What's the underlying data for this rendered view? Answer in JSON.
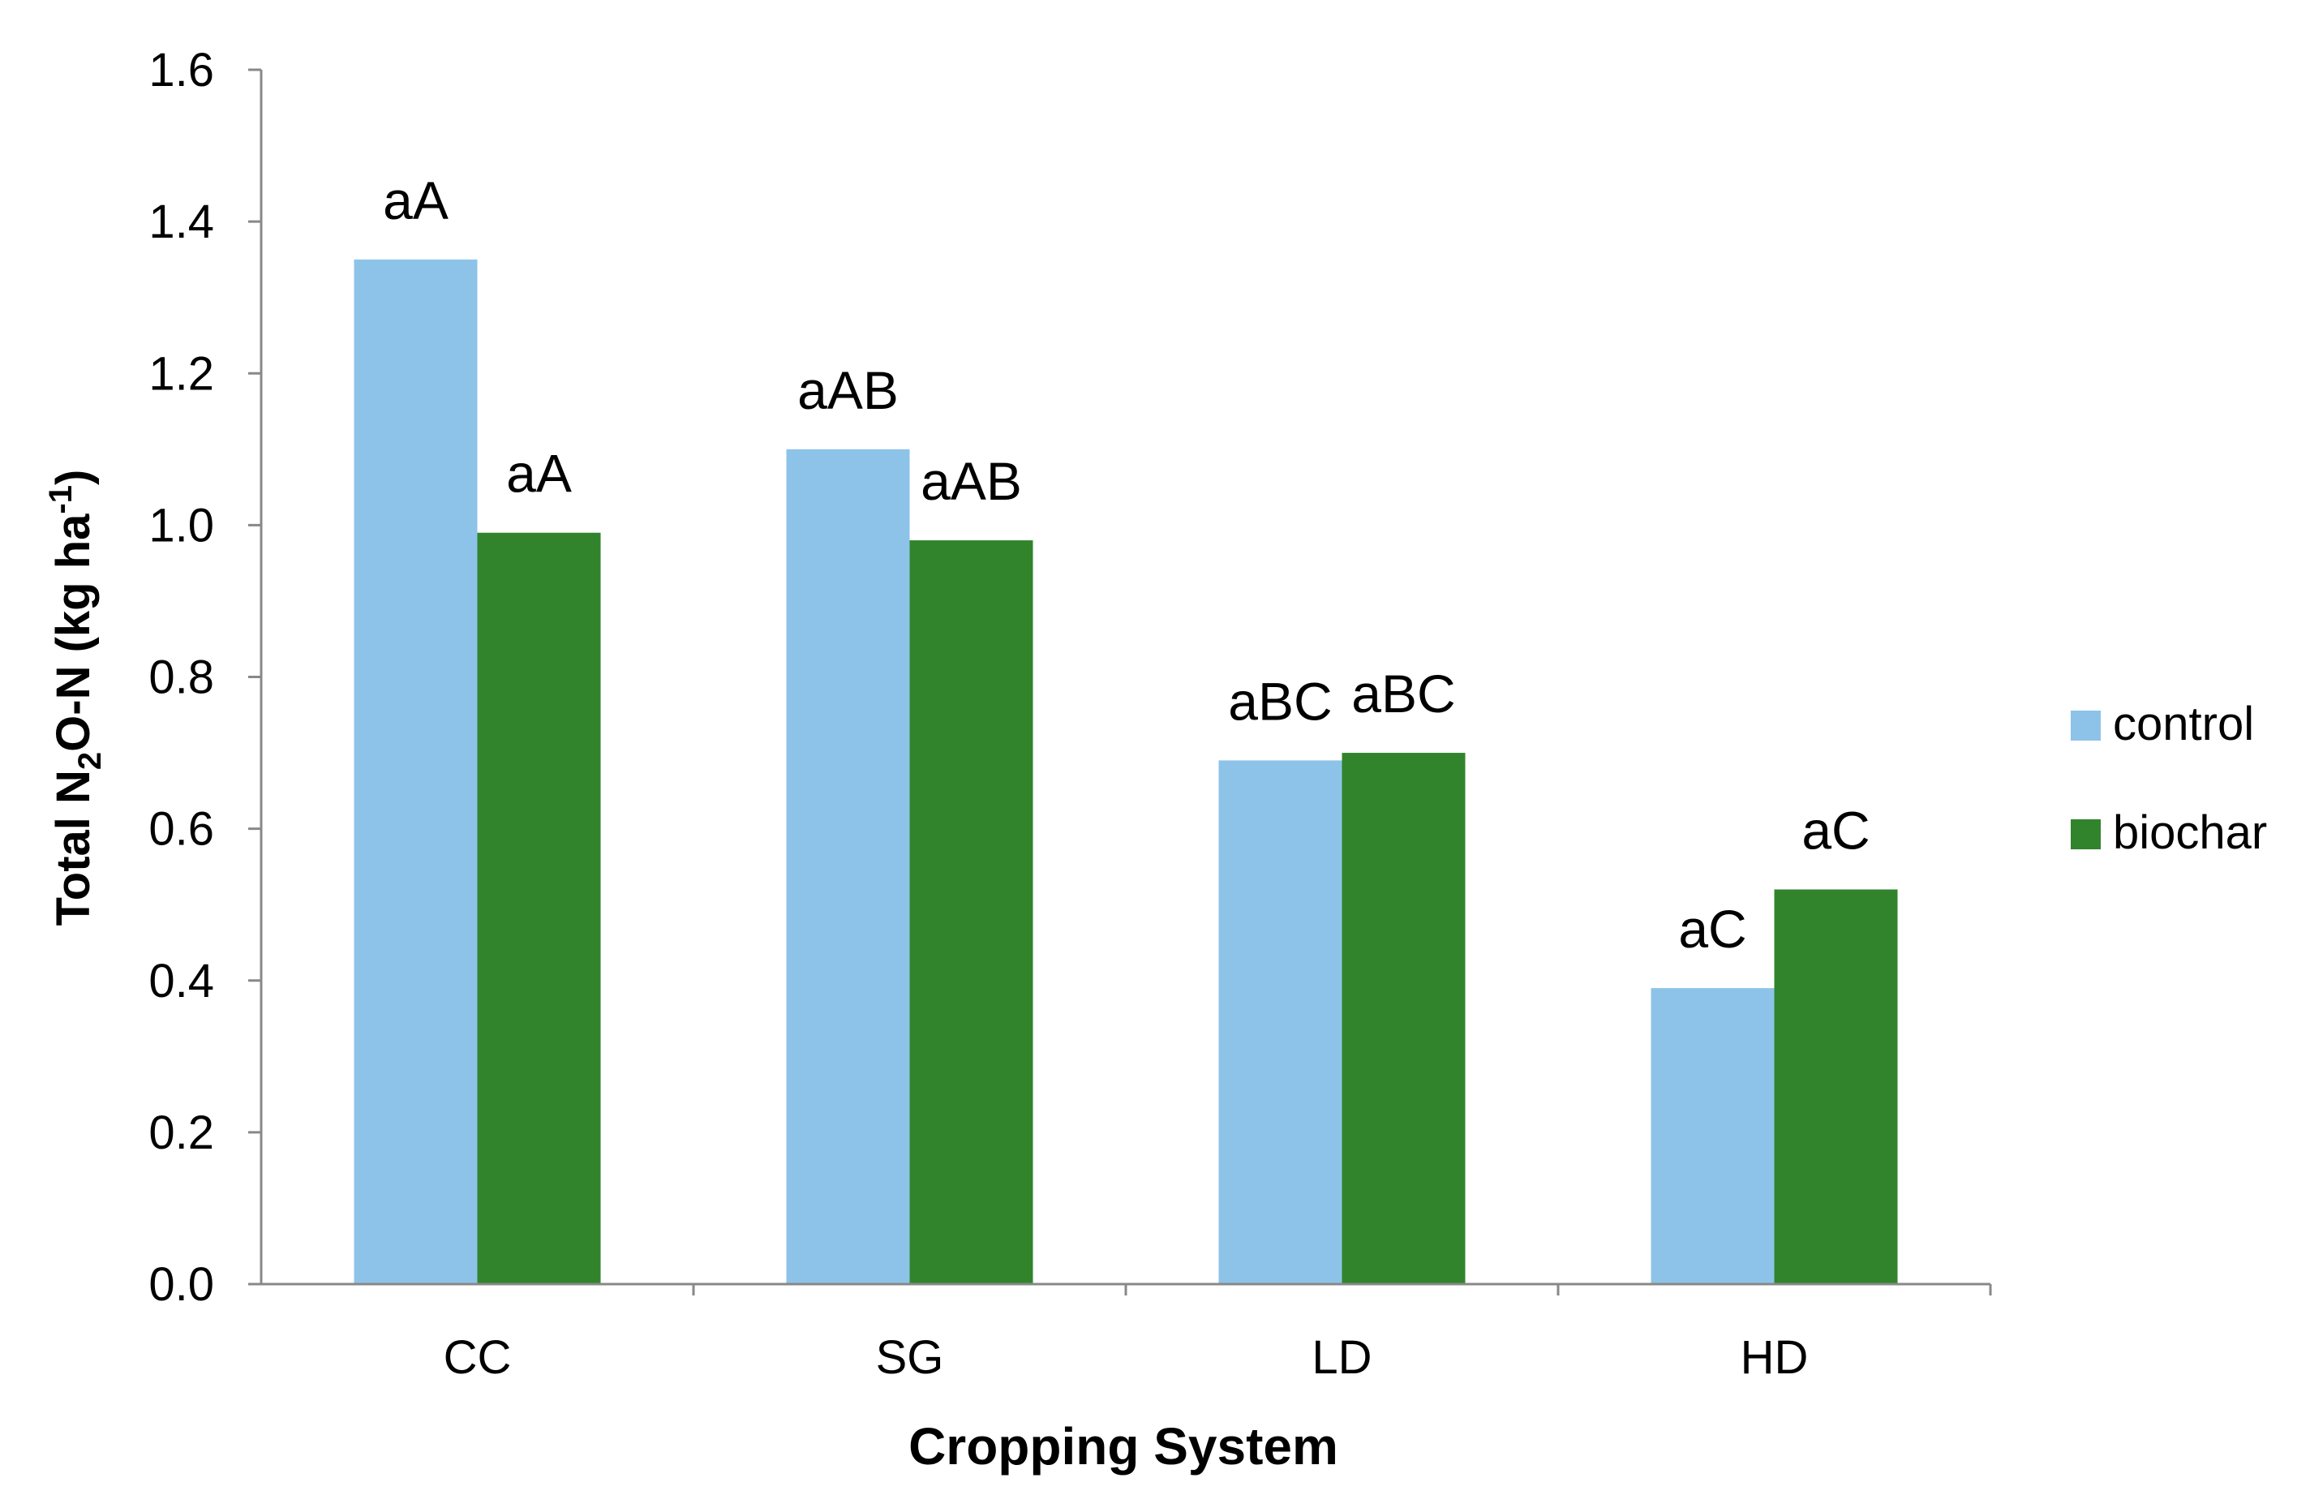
{
  "chart_data": {
    "type": "bar",
    "categories": [
      "CC",
      "SG",
      "LD",
      "HD"
    ],
    "series": [
      {
        "name": "control",
        "color": "#8dc3e8",
        "values": [
          1.35,
          1.1,
          0.69,
          0.39
        ],
        "labels": [
          "aA",
          "aAB",
          "aBC",
          "aC"
        ]
      },
      {
        "name": "biochar",
        "color": "#31842b",
        "values": [
          0.99,
          0.98,
          0.7,
          0.52
        ],
        "labels": [
          "aA",
          "aAB",
          "aBC",
          "aC"
        ]
      }
    ],
    "title": "",
    "xlabel": "Cropping System",
    "ylabel": {
      "prefix": "Total N",
      "sub": "2",
      "middle": "O-N (kg ha",
      "sup": "-1",
      "suffix": ")"
    },
    "ylim": [
      0,
      1.6
    ],
    "yticks": [
      "0.0",
      "0.2",
      "0.4",
      "0.6",
      "0.8",
      "1.0",
      "1.2",
      "1.4",
      "1.6"
    ],
    "grid": false,
    "legend_position": "right"
  }
}
